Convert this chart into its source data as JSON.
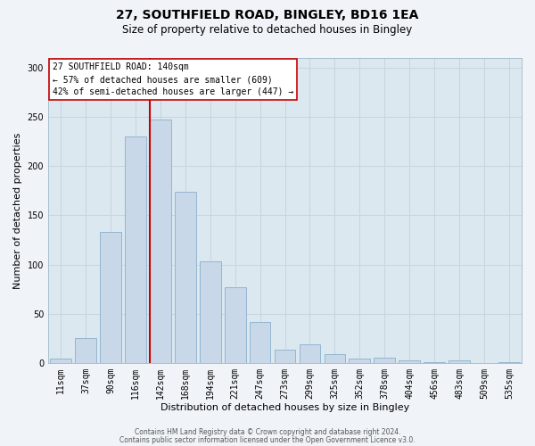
{
  "title_line1": "27, SOUTHFIELD ROAD, BINGLEY, BD16 1EA",
  "title_line2": "Size of property relative to detached houses in Bingley",
  "xlabel": "Distribution of detached houses by size in Bingley",
  "ylabel": "Number of detached properties",
  "bar_labels": [
    "11sqm",
    "37sqm",
    "90sqm",
    "116sqm",
    "142sqm",
    "168sqm",
    "194sqm",
    "221sqm",
    "247sqm",
    "273sqm",
    "299sqm",
    "325sqm",
    "352sqm",
    "378sqm",
    "404sqm",
    "456sqm",
    "483sqm",
    "509sqm",
    "535sqm"
  ],
  "bar_values": [
    4,
    25,
    133,
    230,
    247,
    174,
    103,
    77,
    42,
    13,
    19,
    9,
    4,
    5,
    3,
    1,
    3,
    0,
    1
  ],
  "bar_color": "#c8d8e8",
  "bar_edge_color": "#8ab0cc",
  "vline_color": "#cc0000",
  "vline_x_index": 3.575,
  "annotation_title": "27 SOUTHFIELD ROAD: 140sqm",
  "annotation_line2": "← 57% of detached houses are smaller (609)",
  "annotation_line3": "42% of semi-detached houses are larger (447) →",
  "annotation_box_facecolor": "#ffffff",
  "annotation_box_edgecolor": "#cc0000",
  "ylim": [
    0,
    310
  ],
  "yticks": [
    0,
    50,
    100,
    150,
    200,
    250,
    300
  ],
  "grid_color": "#c8d4de",
  "ax_bg_color": "#dce8f0",
  "fig_bg_color": "#f0f4f8",
  "footer_line1": "Contains HM Land Registry data © Crown copyright and database right 2024.",
  "footer_line2": "Contains public sector information licensed under the Open Government Licence v3.0.",
  "title_fontsize": 10,
  "subtitle_fontsize": 8.5,
  "ylabel_fontsize": 8,
  "xlabel_fontsize": 8,
  "tick_fontsize": 7,
  "annot_fontsize": 7,
  "footer_fontsize": 5.5
}
